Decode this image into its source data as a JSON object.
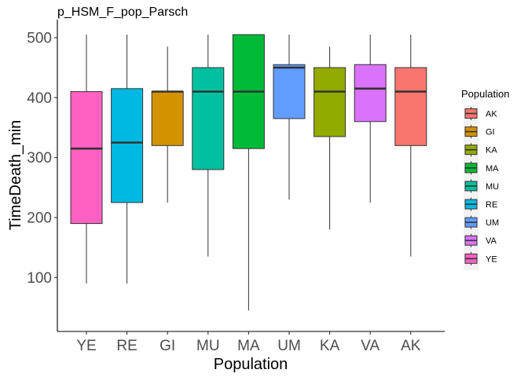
{
  "chart_data": {
    "type": "boxplot",
    "title": "p_HSM_F_pop_Parsch",
    "xlabel": "Population",
    "ylabel": "TimeDeath_min",
    "ylim": [
      10,
      530
    ],
    "yticks": [
      100,
      200,
      300,
      400,
      500
    ],
    "grid": false,
    "legend": {
      "title": "Population",
      "position": "right",
      "entries": [
        "AK",
        "GI",
        "KA",
        "MA",
        "MU",
        "RE",
        "UM",
        "VA",
        "YE"
      ]
    },
    "colors": {
      "AK": "#F8766D",
      "GI": "#D39200",
      "KA": "#93AA00",
      "MA": "#00BA38",
      "MU": "#00C19F",
      "RE": "#00B9E3",
      "UM": "#619CFF",
      "VA": "#DB72FB",
      "YE": "#FF61C3"
    },
    "categories": [
      "YE",
      "RE",
      "GI",
      "MU",
      "MA",
      "UM",
      "KA",
      "VA",
      "AK"
    ],
    "boxes": [
      {
        "category": "YE",
        "min": 90,
        "q1": 190,
        "median": 315,
        "q3": 410,
        "max": 505
      },
      {
        "category": "RE",
        "min": 90,
        "q1": 225,
        "median": 325,
        "q3": 415,
        "max": 505
      },
      {
        "category": "GI",
        "min": 225,
        "q1": 320,
        "median": 410,
        "q3": 410,
        "max": 485
      },
      {
        "category": "MU",
        "min": 135,
        "q1": 280,
        "median": 410,
        "q3": 450,
        "max": 505
      },
      {
        "category": "MA",
        "min": 45,
        "q1": 315,
        "median": 410,
        "q3": 505,
        "max": 505
      },
      {
        "category": "UM",
        "min": 230,
        "q1": 365,
        "median": 450,
        "q3": 455,
        "max": 505
      },
      {
        "category": "KA",
        "min": 180,
        "q1": 335,
        "median": 410,
        "q3": 450,
        "max": 485
      },
      {
        "category": "VA",
        "min": 225,
        "q1": 360,
        "median": 415,
        "q3": 455,
        "max": 505
      },
      {
        "category": "AK",
        "min": 135,
        "q1": 320,
        "median": 410,
        "q3": 450,
        "max": 505
      }
    ]
  }
}
